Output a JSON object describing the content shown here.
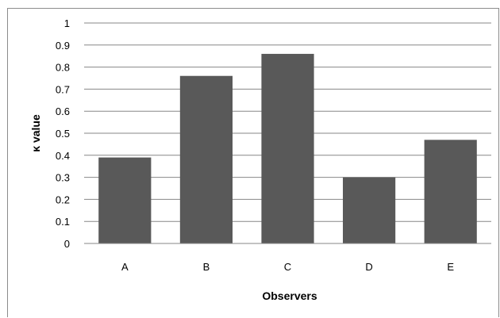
{
  "chart_data": {
    "type": "bar",
    "categories": [
      "A",
      "B",
      "C",
      "D",
      "E"
    ],
    "values": [
      0.39,
      0.76,
      0.86,
      0.3,
      0.47
    ],
    "title": "",
    "xlabel": "Observers",
    "ylabel": "κ value",
    "ylim": [
      0,
      1
    ],
    "yticks": [
      "0",
      "0.1",
      "0.2",
      "0.3",
      "0.4",
      "0.5",
      "0.6",
      "0.7",
      "0.8",
      "0.9",
      "1"
    ],
    "grid": "horizontal",
    "legend": "none",
    "bar_color": "#595959",
    "grid_color": "#878787"
  }
}
